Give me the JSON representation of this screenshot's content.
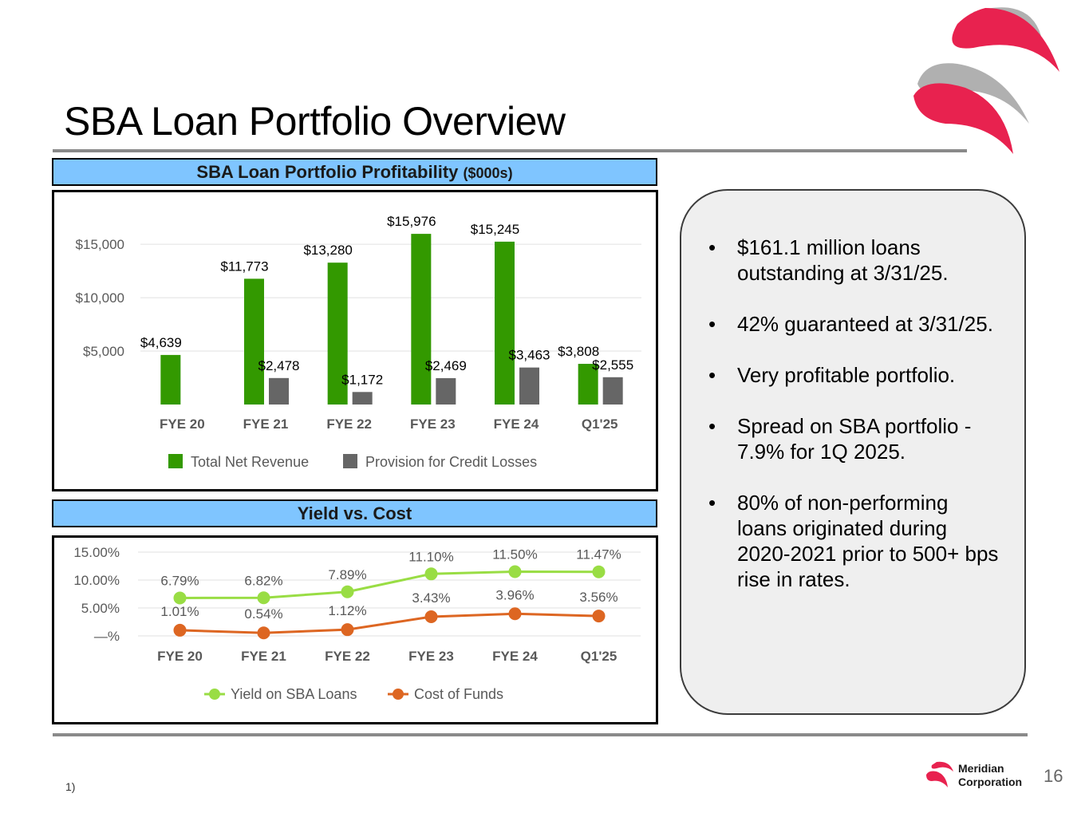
{
  "page": {
    "title": "SBA Loan Portfolio Overview",
    "page_number": "16",
    "footnote": "1)",
    "company_line1": "Meridian",
    "company_line2": "Corporation"
  },
  "profitability": {
    "header": "SBA Loan Portfolio Profitability",
    "header_unit": "($000s)"
  },
  "yield_cost": {
    "header": "Yield vs. Cost"
  },
  "bullets": [
    "$161.1 million loans outstanding at 3/31/25.",
    "42% guaranteed at 3/31/25.",
    "Very profitable portfolio.",
    "Spread on SBA portfolio - 7.9% for 1Q 2025.",
    "80% of non-performing loans originated during 2020-2021 prior to 500+ bps rise in rates."
  ],
  "colors": {
    "revenue": "#339900",
    "provision": "#666666",
    "yield": "#99dd44",
    "cost": "#dd6622",
    "header_bg": "#7fc5ff",
    "logo_red": "#e8224f",
    "logo_grey": "#b0b0b0"
  },
  "chart_data": [
    {
      "type": "bar",
      "categories": [
        "FYE 20",
        "FYE 21",
        "FYE 22",
        "FYE 23",
        "FYE 24",
        "Q1'25"
      ],
      "series": [
        {
          "name": "Total Net Revenue",
          "values": [
            4639,
            11773,
            13280,
            15976,
            15245,
            3808
          ],
          "labels": [
            "$4,639",
            "$11,773",
            "$13,280",
            "$15,976",
            "$15,245",
            "$3,808"
          ]
        },
        {
          "name": "Provision for Credit Losses",
          "values": [
            0,
            2478,
            1172,
            2469,
            3463,
            2555
          ],
          "labels": [
            "",
            "$2,478",
            "$1,172",
            "$2,469",
            "$3,463",
            "$2,555"
          ]
        }
      ],
      "yticks": [
        5000,
        10000,
        15000
      ],
      "ytick_labels": [
        "$5,000",
        "$10,000",
        "$15,000"
      ],
      "ylim": [
        0,
        18000
      ],
      "grid": true,
      "legend": "bottom"
    },
    {
      "type": "line",
      "categories": [
        "FYE 20",
        "FYE 21",
        "FYE 22",
        "FYE 23",
        "FYE 24",
        "Q1'25"
      ],
      "series": [
        {
          "name": "Yield on SBA Loans",
          "values": [
            6.79,
            6.82,
            7.89,
            11.1,
            11.5,
            11.47
          ],
          "labels": [
            "6.79%",
            "6.82%",
            "7.89%",
            "11.10%",
            "11.50%",
            "11.47%"
          ]
        },
        {
          "name": "Cost of Funds",
          "values": [
            1.01,
            0.54,
            1.12,
            3.43,
            3.96,
            3.56
          ],
          "labels": [
            "1.01%",
            "0.54%",
            "1.12%",
            "3.43%",
            "3.96%",
            "3.56%"
          ]
        }
      ],
      "yticks": [
        0,
        5,
        10,
        15
      ],
      "ytick_labels": [
        "—%",
        "5.00%",
        "10.00%",
        "15.00%"
      ],
      "ylim": [
        0,
        15
      ],
      "grid": true,
      "legend": "bottom"
    }
  ]
}
